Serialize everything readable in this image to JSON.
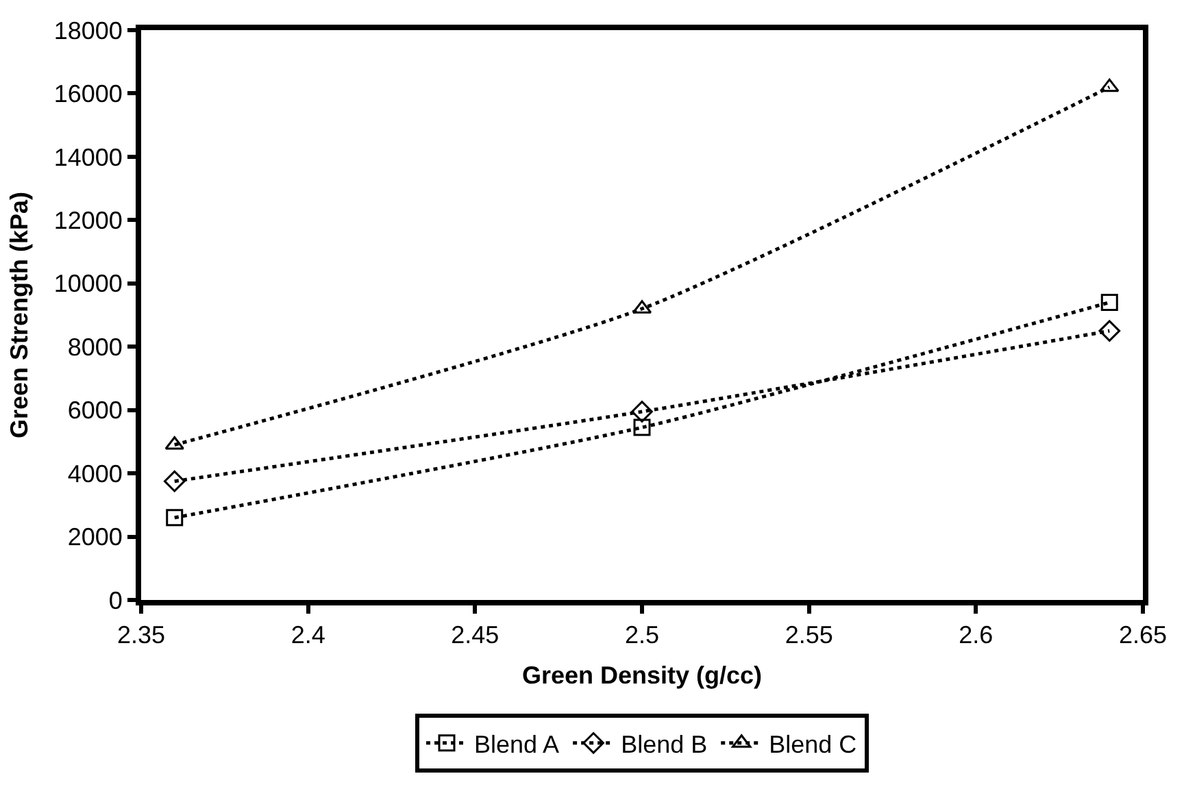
{
  "chart_data": {
    "type": "line",
    "xlabel": "Green Density (g/cc)",
    "ylabel": "Green Strength (kPa)",
    "x": [
      2.36,
      2.5,
      2.64
    ],
    "series": [
      {
        "name": "Blend A",
        "color": "#000000",
        "marker": "square",
        "values": [
          2600,
          5450,
          9400
        ]
      },
      {
        "name": "Blend B",
        "color": "#000000",
        "marker": "diamond",
        "values": [
          3750,
          5950,
          8500
        ]
      },
      {
        "name": "Blend C",
        "color": "#000000",
        "marker": "triangle",
        "values": [
          4900,
          9200,
          16200
        ]
      }
    ],
    "xlim": [
      2.35,
      2.65
    ],
    "xticks": [
      2.35,
      2.4,
      2.45,
      2.5,
      2.55,
      2.6,
      2.65
    ],
    "ylim": [
      0,
      18000
    ],
    "yticks": [
      0,
      2000,
      4000,
      6000,
      8000,
      10000,
      12000,
      14000,
      16000,
      18000
    ],
    "legend": "bottom",
    "line_style": "dotted"
  }
}
